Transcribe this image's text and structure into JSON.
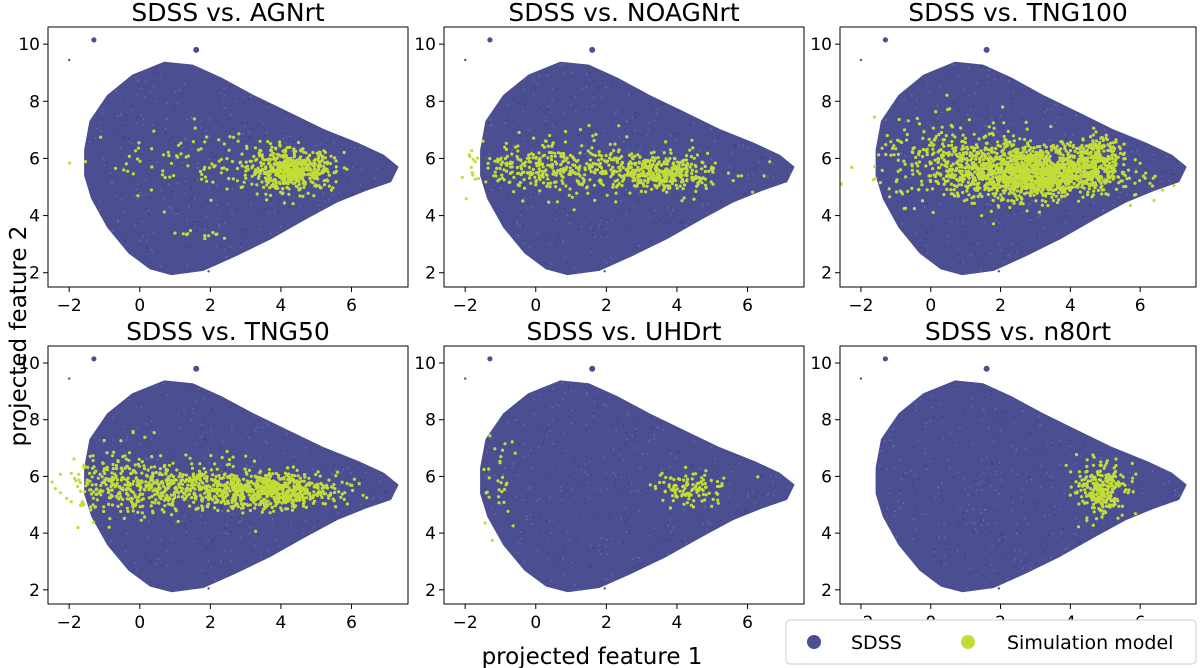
{
  "figure": {
    "xlabel": "projected feature 1",
    "ylabel": "projected feature 2"
  },
  "colors": {
    "sdss": "#4b4f91",
    "simulation": "#c3dd38",
    "frame": "#000000"
  },
  "legend": {
    "placement": "bottom-right",
    "entries": [
      {
        "label": "SDSS",
        "color": "#4b4f91"
      },
      {
        "label": "Simulation model",
        "color": "#c3dd38"
      }
    ]
  },
  "chart_data": [
    {
      "type": "scatter",
      "title": "SDSS vs. AGNrt",
      "xlim": [
        -2.6,
        7.6
      ],
      "ylim": [
        1.5,
        10.6
      ],
      "xticks": [
        -2,
        0,
        2,
        4,
        6
      ],
      "yticks": [
        2,
        4,
        6,
        8,
        10
      ],
      "series": [
        {
          "name": "SDSS",
          "shape": "background cloud spanning x -1.6..7.3, y 1.9..9.4"
        },
        {
          "name": "Simulation model",
          "clusters": [
            {
              "cx": 4.3,
              "cy": 5.6,
              "sx": 0.6,
              "sy": 0.35,
              "n": 550
            },
            {
              "cx": 1.8,
              "cy": 5.8,
              "sx": 1.4,
              "sy": 0.6,
              "n": 90
            },
            {
              "cx": 1.9,
              "cy": 3.3,
              "sx": 0.3,
              "sy": 0.1,
              "n": 12
            }
          ]
        }
      ]
    },
    {
      "type": "scatter",
      "title": "SDSS vs. NOAGNrt",
      "xlim": [
        -2.6,
        7.6
      ],
      "ylim": [
        1.5,
        10.6
      ],
      "xticks": [
        -2,
        0,
        2,
        4,
        6
      ],
      "yticks": [
        2,
        4,
        6,
        8,
        10
      ],
      "series": [
        {
          "name": "SDSS",
          "shape": "background cloud spanning x -1.6..7.3, y 1.9..9.4"
        },
        {
          "name": "Simulation model",
          "clusters": [
            {
              "cx": 3.6,
              "cy": 5.5,
              "sx": 0.8,
              "sy": 0.3,
              "n": 360
            },
            {
              "cx": 0.3,
              "cy": 5.7,
              "sx": 1.0,
              "sy": 0.4,
              "n": 260
            },
            {
              "cx": 2.0,
              "cy": 5.6,
              "sx": 1.6,
              "sy": 0.6,
              "n": 120
            }
          ]
        }
      ]
    },
    {
      "type": "scatter",
      "title": "SDSS vs. TNG100",
      "xlim": [
        -2.6,
        7.6
      ],
      "ylim": [
        1.5,
        10.6
      ],
      "xticks": [
        -2,
        0,
        2,
        4,
        6
      ],
      "yticks": [
        2,
        4,
        6,
        8,
        10
      ],
      "series": [
        {
          "name": "SDSS",
          "shape": "background cloud spanning x -1.6..7.3, y 1.9..9.4"
        },
        {
          "name": "Simulation model",
          "clusters": [
            {
              "cx": 3.0,
              "cy": 5.5,
              "sx": 1.2,
              "sy": 0.45,
              "n": 1500
            },
            {
              "cx": 4.8,
              "cy": 6.2,
              "sx": 0.3,
              "sy": 0.35,
              "n": 150
            },
            {
              "cx": 1.0,
              "cy": 5.9,
              "sx": 1.3,
              "sy": 0.7,
              "n": 350
            }
          ]
        }
      ]
    },
    {
      "type": "scatter",
      "title": "SDSS vs. TNG50",
      "xlim": [
        -2.6,
        7.6
      ],
      "ylim": [
        1.5,
        10.6
      ],
      "xticks": [
        -2,
        0,
        2,
        4,
        6
      ],
      "yticks": [
        2,
        4,
        6,
        8,
        10
      ],
      "series": [
        {
          "name": "SDSS",
          "shape": "background cloud spanning x -1.6..7.3, y 1.9..9.4"
        },
        {
          "name": "Simulation model",
          "clusters": [
            {
              "cx": 3.8,
              "cy": 5.5,
              "sx": 0.9,
              "sy": 0.3,
              "n": 600
            },
            {
              "cx": 1.2,
              "cy": 5.6,
              "sx": 1.3,
              "sy": 0.45,
              "n": 500
            },
            {
              "cx": -0.8,
              "cy": 5.8,
              "sx": 0.6,
              "sy": 0.6,
              "n": 150
            }
          ]
        }
      ]
    },
    {
      "type": "scatter",
      "title": "SDSS vs. UHDrt",
      "xlim": [
        -2.6,
        7.6
      ],
      "ylim": [
        1.5,
        10.6
      ],
      "xticks": [
        -2,
        0,
        2,
        4,
        6
      ],
      "yticks": [
        2,
        4,
        6,
        8,
        10
      ],
      "series": [
        {
          "name": "SDSS",
          "shape": "background cloud spanning x -1.6..7.3, y 1.9..9.4"
        },
        {
          "name": "Simulation model",
          "clusters": [
            {
              "cx": 4.4,
              "cy": 5.6,
              "sx": 0.5,
              "sy": 0.3,
              "n": 110
            },
            {
              "cx": -1.0,
              "cy": 5.7,
              "sx": 0.3,
              "sy": 0.9,
              "n": 30
            }
          ]
        }
      ]
    },
    {
      "type": "scatter",
      "title": "SDSS vs. n80rt",
      "xlim": [
        -2.6,
        7.6
      ],
      "ylim": [
        1.5,
        10.6
      ],
      "xticks": [
        -2,
        0,
        2,
        4,
        6
      ],
      "yticks": [
        2,
        4,
        6,
        8,
        10
      ],
      "series": [
        {
          "name": "SDSS",
          "shape": "background cloud spanning x -1.6..7.3, y 1.9..9.4"
        },
        {
          "name": "Simulation model",
          "clusters": [
            {
              "cx": 4.9,
              "cy": 5.5,
              "sx": 0.35,
              "sy": 0.45,
              "n": 260
            }
          ]
        }
      ]
    }
  ]
}
